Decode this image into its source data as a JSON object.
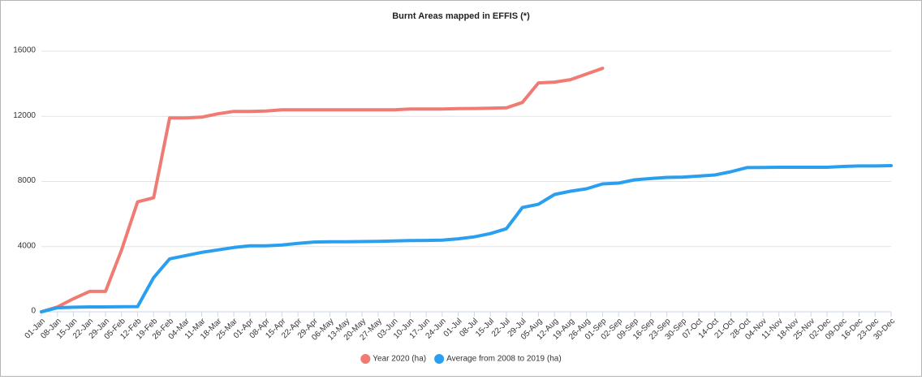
{
  "chart_data": {
    "type": "line",
    "title": "Burnt Areas mapped in EFFIS (*)",
    "categories": [
      "01-Jan",
      "08-Jan",
      "15-Jan",
      "22-Jan",
      "29-Jan",
      "05-Feb",
      "12-Feb",
      "19-Feb",
      "26-Feb",
      "04-Mar",
      "11-Mar",
      "18-Mar",
      "25-Mar",
      "01-Apr",
      "08-Apr",
      "15-Apr",
      "22-Apr",
      "29-Apr",
      "06-May",
      "13-May",
      "20-May",
      "27-May",
      "03-Jun",
      "10-Jun",
      "17-Jun",
      "24-Jun",
      "01-Jul",
      "08-Jul",
      "15-Jul",
      "22-Jul",
      "29-Jul",
      "05-Aug",
      "12-Aug",
      "19-Aug",
      "26-Aug",
      "01-Sep",
      "02-Sep",
      "09-Sep",
      "16-Sep",
      "23-Sep",
      "30-Sep",
      "07-Oct",
      "14-Oct",
      "21-Oct",
      "28-Oct",
      "04-Nov",
      "11-Nov",
      "18-Nov",
      "25-Nov",
      "02-Dec",
      "09-Dec",
      "16-Dec",
      "23-Dec",
      "30-Dec"
    ],
    "series": [
      {
        "name": "Year 2020 (ha)",
        "color": "#f07b72",
        "values": [
          0,
          300,
          800,
          1250,
          1250,
          3800,
          6750,
          7000,
          11900,
          11900,
          11950,
          12150,
          12300,
          12300,
          12320,
          12400,
          12400,
          12400,
          12400,
          12400,
          12400,
          12400,
          12400,
          12450,
          12450,
          12450,
          12470,
          12480,
          12500,
          12520,
          12850,
          14050,
          14100,
          14250,
          14600,
          14950,
          null,
          null,
          null,
          null,
          null,
          null,
          null,
          null,
          null,
          null,
          null,
          null,
          null,
          null,
          null,
          null,
          null,
          null
        ]
      },
      {
        "name": "Average from 2008 to 2019 (ha)",
        "color": "#2b9fef",
        "values": [
          0,
          250,
          280,
          300,
          300,
          310,
          320,
          2100,
          3250,
          3450,
          3650,
          3800,
          3950,
          4050,
          4050,
          4100,
          4200,
          4280,
          4300,
          4300,
          4310,
          4320,
          4350,
          4370,
          4380,
          4400,
          4480,
          4600,
          4800,
          5100,
          6400,
          6600,
          7200,
          7400,
          7550,
          7850,
          7900,
          8100,
          8180,
          8250,
          8270,
          8330,
          8400,
          8600,
          8850,
          8860,
          8870,
          8870,
          8870,
          8870,
          8920,
          8950,
          8950,
          8970
        ]
      }
    ],
    "ylim": [
      0,
      16000
    ],
    "yticks": [
      0,
      4000,
      8000,
      12000,
      16000
    ],
    "grid": true,
    "legend": "bottom"
  }
}
